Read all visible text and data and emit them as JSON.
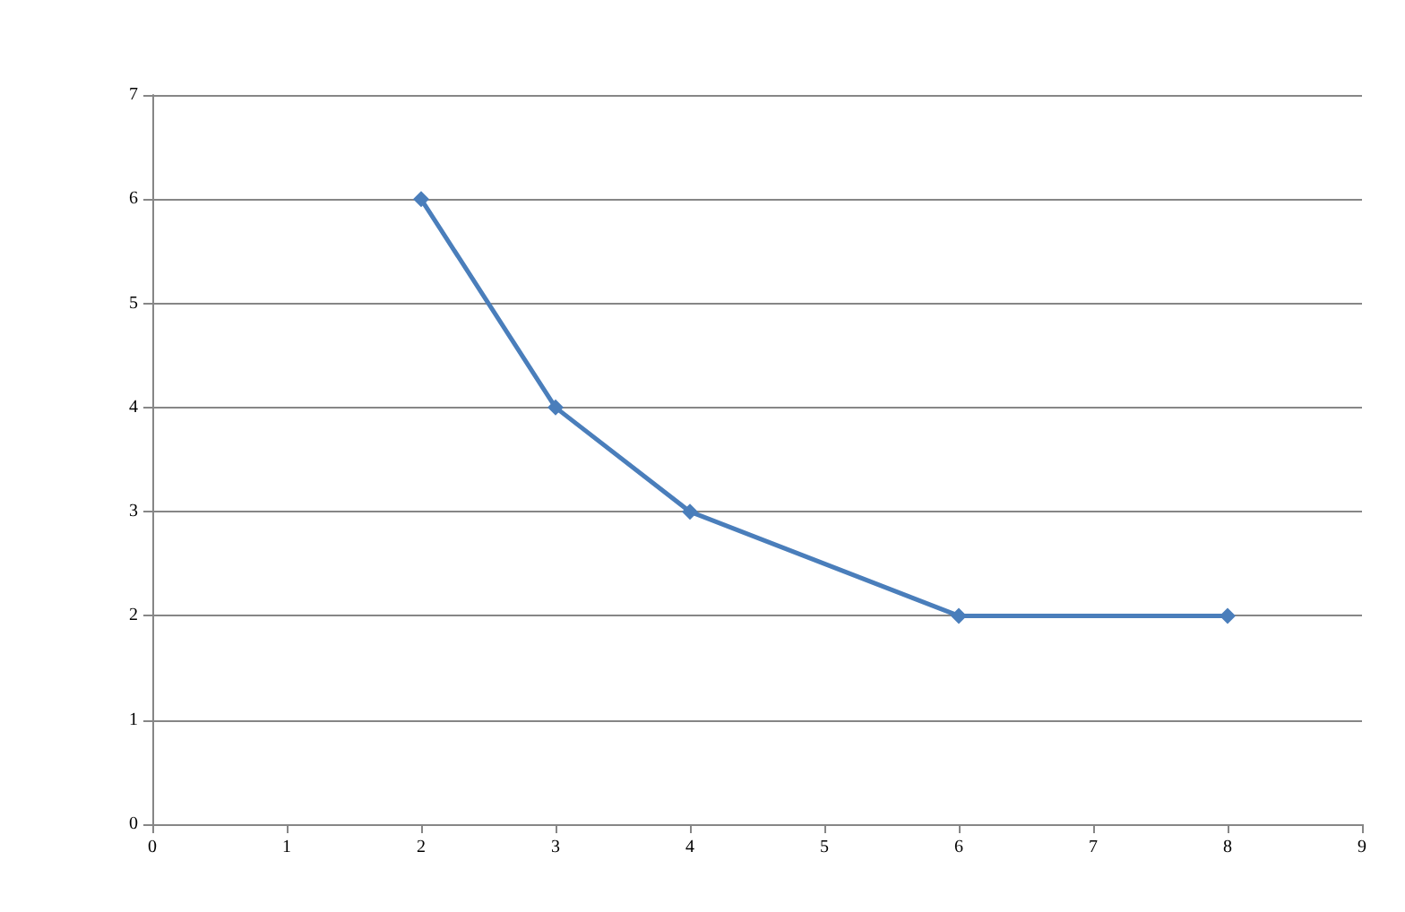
{
  "chart_data": {
    "type": "line",
    "x": [
      2,
      3,
      4,
      6,
      8
    ],
    "series": [
      {
        "color": "#4a7ebb",
        "values": [
          6,
          4,
          3,
          2,
          2
        ]
      }
    ],
    "xlim": [
      0,
      9
    ],
    "xticks": [
      0,
      1,
      2,
      3,
      4,
      5,
      6,
      7,
      8,
      9
    ],
    "ylim": [
      0,
      7
    ],
    "yticks": [
      0,
      1,
      2,
      3,
      4,
      5,
      6,
      7
    ],
    "grid": "y",
    "marker": "diamond",
    "line_style": "solid"
  }
}
